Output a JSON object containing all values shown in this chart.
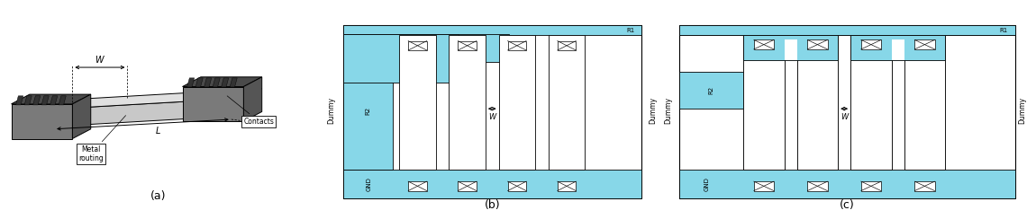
{
  "fig_width": 11.5,
  "fig_height": 2.44,
  "bg_color": "#ffffff",
  "cyan": "#87D7E8",
  "dark_gray": "#4a4a4a",
  "mid_gray": "#7a7a7a",
  "light_gray": "#c8c8c8",
  "lighter_gray": "#e0e0e0",
  "panel_a_label": "(a)",
  "panel_b_label": "(b)",
  "panel_c_label": "(c)"
}
